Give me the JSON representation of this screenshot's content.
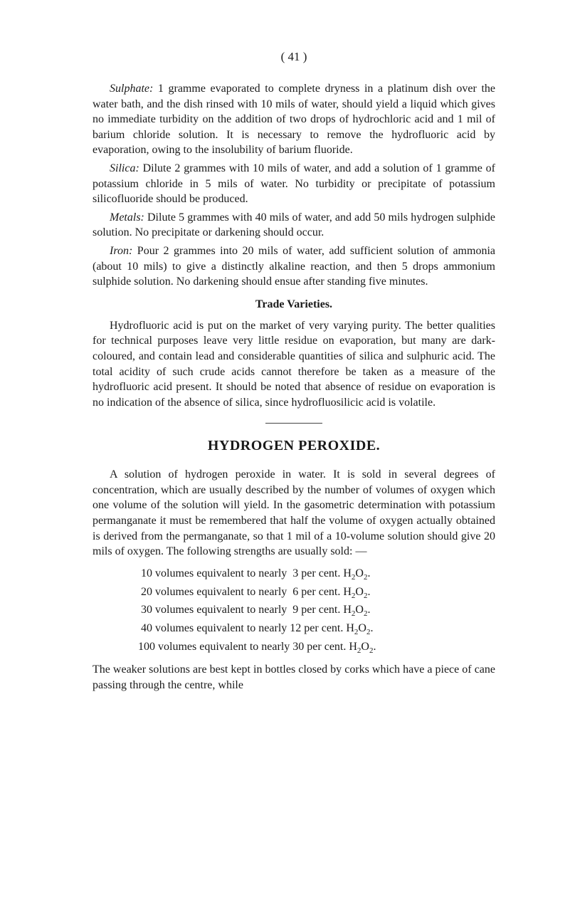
{
  "page_number": "( 41 )",
  "p1_lead": "Sulphate:",
  "p1_text": " 1 gramme evaporated to complete dryness in a platinum dish over the water bath, and the dish rinsed with 10 mils of water, should yield a liquid which gives no immediate turbidity on the addition of two drops of hydrochloric acid and 1 mil of barium chloride solution. It is necessary to remove the hydrofluoric acid by evaporation, owing to the insolubility of barium fluoride.",
  "p2_lead": "Silica:",
  "p2_text": " Dilute 2 grammes with 10 mils of water, and add a solution of 1 gramme of potassium chloride in 5 mils of water. No turbidity or precipitate of potassium silicofluoride should be produced.",
  "p3_lead": "Metals:",
  "p3_text": " Dilute 5 grammes with 40 mils of water, and add 50 mils hydrogen sulphide solution. No precipitate or darkening should occur.",
  "p4_lead": "Iron:",
  "p4_text": " Pour 2 grammes into 20 mils of water, add sufficient solution of ammonia (about 10 mils) to give a distinctly alkaline reaction, and then 5 drops ammonium sulphide solution. No darkening should ensue after standing five minutes.",
  "trade_heading": "Trade Varieties.",
  "p5": "Hydrofluoric acid is put on the market of very varying purity. The better qualities for technical purposes leave very little residue on evaporation, but many are dark-coloured, and contain lead and considerable quantities of silica and sulphuric acid. The total acidity of such crude acids cannot therefore be taken as a measure of the hydrofluoric acid present. It should be noted that absence of residue on evaporation is no indication of the absence of silica, since hydrofluosilicic acid is volatile.",
  "main_heading": "HYDROGEN PEROXIDE.",
  "p6": "A solution of hydrogen peroxide in water. It is sold in several degrees of concentration, which are usually described by the number of volumes of oxygen which one volume of the solution will yield. In the gasometric determination with potassium permanganate it must be remembered that half the volume of oxygen actually obtained is derived from the permanganate, so that 1 mil of a 10-volume solution should give 20 mils of oxygen. The following strengths are usually sold: —",
  "list": {
    "l1_a": "  10 volumes equivalent to nearly  3 per cent. H",
    "l1_b": "O",
    "l1_c": ".",
    "l2_a": "  20 volumes equivalent to nearly  6 per cent. H",
    "l3_a": "  30 volumes equivalent to nearly  9 per cent. H",
    "l4_a": "  40 volumes equivalent to nearly 12 per cent. H",
    "l5_a": " 100 volumes equivalent to nearly 30 per cent. H",
    "sub2": "2"
  },
  "p7": "The weaker solutions are best kept in bottles closed by corks which have a piece of cane passing through the centre, while"
}
